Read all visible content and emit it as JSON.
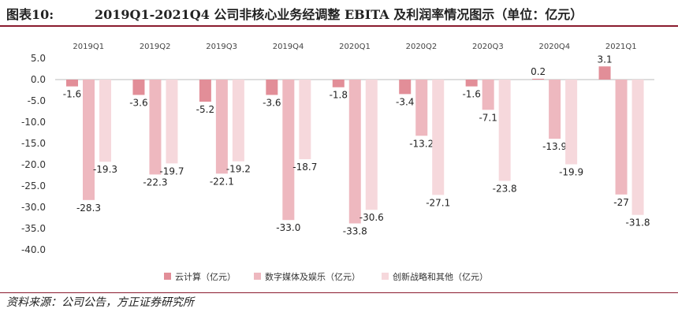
{
  "header": {
    "prefix": "图表10:",
    "title": "2019Q1-2021Q4 公司非核心业务经调整 EBITA 及利润率情况图示（单位：亿元）"
  },
  "footer": {
    "source": "资料来源：公司公告，方正证券研究所"
  },
  "colors": {
    "series1": "#e28e98",
    "series2": "#eeb8bf",
    "series3": "#f6d8dc",
    "brand_rule": "#8a1b2e"
  },
  "chart_data": {
    "type": "bar",
    "categories": [
      "2019Q1",
      "2019Q2",
      "2019Q3",
      "2019Q4",
      "2020Q1",
      "2020Q2",
      "2020Q3",
      "2020Q4",
      "2021Q1"
    ],
    "series": [
      {
        "name": "云计算（亿元）",
        "values": [
          -1.6,
          -3.6,
          -5.2,
          -3.6,
          -1.8,
          -3.4,
          -1.6,
          0.2,
          3.1
        ],
        "labels": [
          "-1.6",
          "-3.6",
          "-5.2",
          "-3.6",
          "-1.8",
          "-3.4",
          "-1.6",
          "0.2",
          "3.1"
        ]
      },
      {
        "name": "数字媒体及娱乐（亿元）",
        "values": [
          -28.3,
          -22.3,
          -22.1,
          -33.0,
          -33.8,
          -13.2,
          -7.1,
          -13.9,
          -27
        ],
        "labels": [
          "-28.3",
          "-22.3",
          "-22.1",
          "-33.0",
          "-33.8",
          "-13.2",
          "-7.1",
          "-13.9",
          "-27"
        ]
      },
      {
        "name": "创新战略和其他（亿元）",
        "values": [
          -19.3,
          -19.7,
          -19.2,
          -18.7,
          -30.6,
          -27.1,
          -23.8,
          -19.9,
          -31.8
        ],
        "labels": [
          "-19.3",
          "-19.7",
          "-19.2",
          "-18.7",
          "-30.6",
          "-27.1",
          "-23.8",
          "-19.9",
          "-31.8"
        ]
      }
    ],
    "yticks": [
      "5.0",
      "0.0",
      "-5.0",
      "-10.0",
      "-15.0",
      "-20.0",
      "-25.0",
      "-30.0",
      "-35.0",
      "-40.0"
    ],
    "ylim": [
      -40,
      5
    ],
    "grid": false,
    "legend_position": "bottom"
  }
}
